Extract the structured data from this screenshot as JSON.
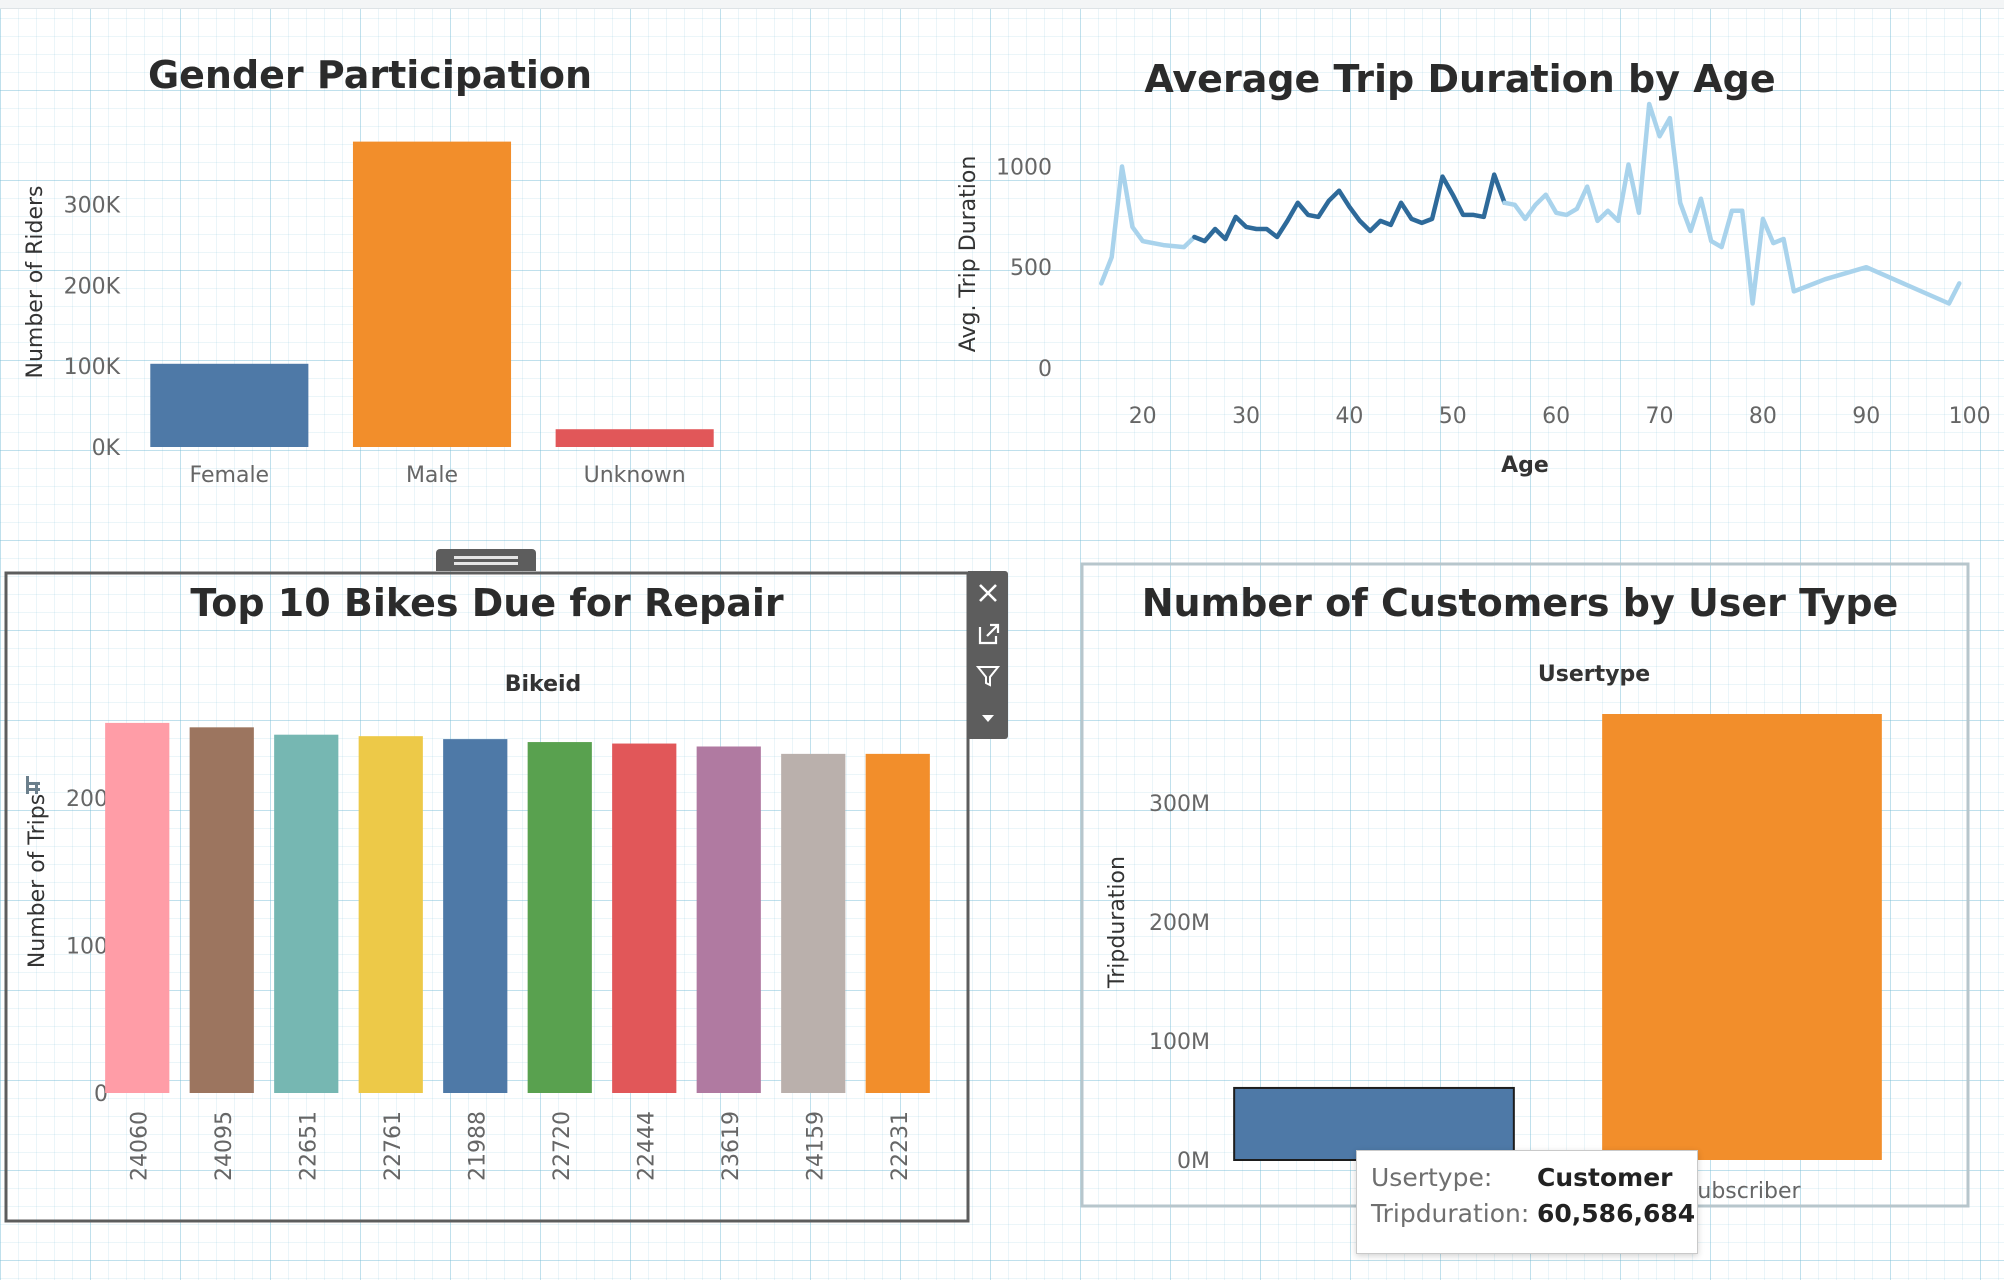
{
  "colors": {
    "blue": "#4e79a7",
    "orange": "#f28e2b",
    "red": "#e15759",
    "grid": "#7fc3d9",
    "line_dark": "#2e6a9a",
    "line_light": "#a9d3ec",
    "bikes": [
      "#ff9da7",
      "#9c755f",
      "#76b7b2",
      "#edc948",
      "#4e79a7",
      "#59a14f",
      "#e15759",
      "#b07aa1",
      "#bab0ac",
      "#f28e2b"
    ]
  },
  "toolbar": {
    "close_icon": "close-icon",
    "open_icon": "external-link-icon",
    "filter_icon": "filter-icon",
    "menu_icon": "chevron-down-icon"
  },
  "tooltip": {
    "key1": "Usertype:",
    "val1": "Customer",
    "key2": "Tripduration:",
    "val2": "60,586,684"
  },
  "chart_data": [
    {
      "id": "gender",
      "type": "bar",
      "title": "Gender Participation",
      "xlabel": "",
      "ylabel": "Number of Riders",
      "categories": [
        "Female",
        "Male",
        "Unknown"
      ],
      "values": [
        103000,
        378000,
        22000
      ],
      "ylim": [
        0,
        380000
      ],
      "yticks": [
        0,
        100000,
        200000,
        300000
      ],
      "ytick_labels": [
        "0K",
        "100K",
        "200K",
        "300K"
      ],
      "bar_colors": [
        "#4e79a7",
        "#f28e2b",
        "#e15759"
      ],
      "grid": false
    },
    {
      "id": "duration",
      "type": "line",
      "title": "Average Trip Duration by Age",
      "xlabel": "Age",
      "ylabel": "Avg. Trip Duration",
      "xticks": [
        20,
        30,
        40,
        50,
        60,
        70,
        80,
        90,
        100
      ],
      "xtick_labels": [
        "20",
        "30",
        "40",
        "50",
        "60",
        "70",
        "80",
        "90",
        "100"
      ],
      "yticks": [
        0,
        500,
        1000
      ],
      "ytick_labels": [
        "0",
        "500",
        "1000"
      ],
      "x": [
        16,
        17,
        18,
        19,
        20,
        22,
        24,
        25,
        26,
        27,
        28,
        29,
        30,
        31,
        32,
        33,
        34,
        35,
        36,
        37,
        38,
        39,
        40,
        41,
        42,
        43,
        44,
        45,
        46,
        47,
        48,
        49,
        50,
        51,
        52,
        53,
        54,
        55,
        56,
        57,
        58,
        59,
        60,
        61,
        62,
        63,
        64,
        65,
        66,
        67,
        68,
        69,
        70,
        71,
        72,
        73,
        74,
        75,
        76,
        77,
        78,
        79,
        80,
        81,
        82,
        83,
        84,
        85,
        86,
        90,
        98,
        99
      ],
      "y": [
        420,
        550,
        1000,
        700,
        630,
        610,
        600,
        650,
        630,
        690,
        640,
        750,
        700,
        690,
        690,
        650,
        730,
        820,
        760,
        750,
        830,
        880,
        800,
        730,
        680,
        730,
        710,
        820,
        740,
        720,
        740,
        950,
        860,
        760,
        760,
        750,
        960,
        820,
        810,
        740,
        810,
        860,
        770,
        760,
        790,
        900,
        730,
        780,
        730,
        1010,
        770,
        1310,
        1150,
        1240,
        820,
        680,
        840,
        630,
        600,
        780,
        780,
        320,
        740,
        620,
        640,
        380,
        400,
        420,
        440,
        500,
        320,
        420
      ],
      "dark_range": [
        25,
        55
      ],
      "xlim": [
        12,
        101
      ],
      "ylim": [
        0,
        1330
      ],
      "grid": false
    },
    {
      "id": "bikes",
      "type": "bar",
      "title": "Top 10 Bikes Due for Repair",
      "xlabel": "Bikeid",
      "ylabel": "Number of Trips",
      "categories": [
        "24060",
        "24095",
        "22651",
        "22761",
        "21988",
        "22720",
        "22444",
        "23619",
        "24159",
        "22231"
      ],
      "values": [
        251,
        248,
        243,
        242,
        240,
        238,
        237,
        235,
        230,
        230
      ],
      "ylim": [
        0,
        255
      ],
      "yticks": [
        0,
        100,
        200
      ],
      "ytick_labels": [
        "0",
        "100",
        "200"
      ],
      "grid": false
    },
    {
      "id": "usertype",
      "type": "bar",
      "title": "Number of Customers by User Type",
      "xlabel": "Usertype",
      "ylabel": "Tripduration",
      "categories": [
        "Customer",
        "Subscriber"
      ],
      "values": [
        60586684,
        375000000
      ],
      "ylim": [
        0,
        375000000
      ],
      "yticks": [
        0,
        100000000,
        200000000,
        300000000
      ],
      "ytick_labels": [
        "0M",
        "100M",
        "200M",
        "300M"
      ],
      "bar_colors": [
        "#4e79a7",
        "#f28e2b"
      ],
      "grid": false
    }
  ]
}
